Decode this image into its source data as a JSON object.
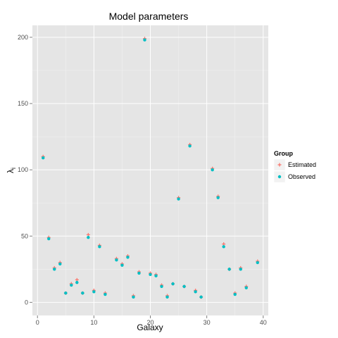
{
  "chart_data": {
    "type": "scatter",
    "title": "Model parameters",
    "xlabel": "Galaxy",
    "ylabel": "λ",
    "ylabel_subscript": "i",
    "xlim": [
      -0.9,
      40.9
    ],
    "ylim": [
      -9.9,
      209.0
    ],
    "x_ticks": [
      0,
      10,
      20,
      30,
      40
    ],
    "y_ticks": [
      0,
      50,
      100,
      150,
      200
    ],
    "grid": true,
    "legend": {
      "title": "Group",
      "position": "right",
      "entries": [
        {
          "name": "Estimated",
          "color": "#F8766D"
        },
        {
          "name": "Observed",
          "color": "#00BFC4"
        }
      ]
    },
    "x": [
      1,
      2,
      3,
      4,
      5,
      6,
      7,
      8,
      9,
      10,
      11,
      12,
      13,
      14,
      15,
      16,
      17,
      18,
      19,
      20,
      21,
      22,
      23,
      24,
      25,
      26,
      27,
      28,
      29,
      30,
      31,
      32,
      33,
      34,
      35,
      36,
      37,
      38,
      39
    ],
    "series": [
      {
        "name": "Estimated",
        "color": "#F8766D",
        "shape": "cross",
        "values": [
          110,
          49,
          26,
          30,
          7,
          14,
          17,
          7,
          51,
          9,
          43,
          7,
          null,
          33,
          29,
          35,
          5,
          23,
          199,
          22,
          21,
          13,
          5,
          14,
          79,
          12,
          119,
          9,
          4,
          null,
          101,
          80,
          44,
          25,
          7,
          26,
          12,
          null,
          31
        ]
      },
      {
        "name": "Observed",
        "color": "#00BFC4",
        "shape": "dot",
        "values": [
          109,
          48,
          25,
          29,
          7,
          13,
          15,
          7,
          49,
          8,
          42,
          6,
          null,
          32,
          28,
          34,
          4,
          22,
          198,
          21,
          20,
          12,
          4,
          14,
          78,
          12,
          118,
          8,
          4,
          null,
          100,
          79,
          42,
          25,
          6,
          25,
          11,
          null,
          30
        ]
      }
    ]
  }
}
